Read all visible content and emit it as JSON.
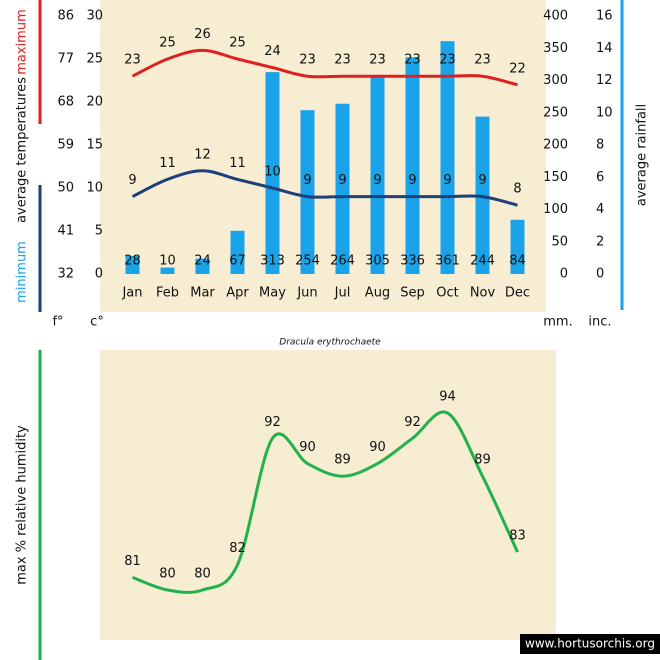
{
  "chart_data": [
    {
      "type": "bar-line",
      "caption": "Dracula erythrochaete",
      "ylabel": "average temperatures",
      "y_unit": "c°",
      "y_unit_fahrenheit": "f°",
      "y2_unit": "mm.",
      "y2_unit_inches": "inc.",
      "categories": [
        "Jan",
        "Feb",
        "Mar",
        "Apr",
        "May",
        "Jun",
        "Jul",
        "Aug",
        "Sep",
        "Oct",
        "Nov",
        "Dec"
      ],
      "series": [
        {
          "name": "average rainfall",
          "type": "bar",
          "axis": "y2",
          "color": "#1aa3e8",
          "values": [
            28,
            10,
            24,
            67,
            313,
            254,
            264,
            305,
            336,
            361,
            244,
            84
          ]
        },
        {
          "name": "maximum",
          "type": "line",
          "color": "#e0201e",
          "values": [
            23,
            25,
            26,
            25,
            24,
            23,
            23,
            23,
            23,
            23,
            23,
            22
          ]
        },
        {
          "name": "minimum",
          "type": "line",
          "color": "#1e3f78",
          "values": [
            9,
            11,
            12,
            11,
            10,
            9,
            9,
            9,
            9,
            9,
            9,
            8
          ]
        }
      ],
      "ylim": [
        0,
        30
      ],
      "yticks": [
        0,
        5,
        10,
        15,
        20,
        25,
        30
      ],
      "ylim_fahrenheit": [
        32,
        86
      ],
      "yticks_fahrenheit": [
        32,
        41,
        50,
        59,
        68,
        77,
        86
      ],
      "y2lim": [
        0,
        400
      ],
      "y2ticks": [
        0,
        50,
        100,
        150,
        200,
        250,
        300,
        350,
        400
      ],
      "y2lim_inches": [
        0,
        16
      ],
      "y2ticks_inches": [
        0,
        2,
        4,
        6,
        8,
        10,
        12,
        14,
        16
      ]
    },
    {
      "type": "line",
      "ylabel": "max % relative humidity",
      "source": "www.hortusorchis.org",
      "series": [
        {
          "name": null,
          "color": "#22b14c",
          "values": [
            81,
            80,
            80,
            82,
            92,
            90,
            89,
            90,
            92,
            94,
            89,
            83
          ]
        }
      ]
    }
  ]
}
